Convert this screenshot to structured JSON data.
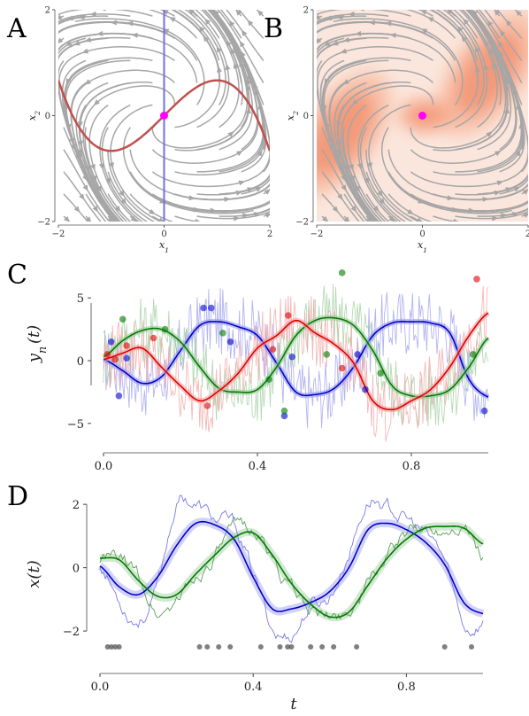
{
  "panels": {
    "a": "A",
    "b": "B",
    "c": "C",
    "d": "D"
  },
  "colors": {
    "stream": "#a6a6a6",
    "nullcline_vertical": "#7070ee",
    "nullcline_cubic": "#c0504d",
    "fixed_point": "#ff00ff",
    "density": "#f4956e",
    "series_blue": "#0000cc",
    "series_green": "#007a00",
    "series_red": "#dd0000",
    "observation_dots": "#555555"
  },
  "chart_data": [
    {
      "panel": "A",
      "type": "streamplot",
      "xlabel": "x_1",
      "ylabel": "x_2",
      "xlim": [
        -2,
        2
      ],
      "ylim": [
        -2,
        2
      ],
      "xticks": [
        "−2",
        "0",
        "2"
      ],
      "yticks": [
        "−2",
        "0",
        "2"
      ],
      "fixed_point": [
        0,
        0
      ],
      "nullclines": [
        {
          "kind": "vertical",
          "x": 0
        },
        {
          "kind": "cubic",
          "x": [
            -2,
            -1.5,
            -1,
            -0.5,
            0,
            0.5,
            1,
            1.5,
            2
          ],
          "y": [
            0.67,
            -0.19,
            -0.67,
            -0.46,
            0,
            0.46,
            0.67,
            0.19,
            -0.67
          ]
        }
      ]
    },
    {
      "panel": "B",
      "type": "streamplot",
      "xlabel": "x_1",
      "ylabel": "x_2",
      "xlim": [
        -2,
        2
      ],
      "ylim": [
        -2,
        2
      ],
      "xticks": [
        "−2",
        "0",
        "2"
      ],
      "yticks": [
        "−2",
        "0",
        "2"
      ],
      "fixed_point": [
        0,
        0
      ],
      "density_blobs": [
        {
          "center": [
            -1.55,
            -0.35
          ],
          "size": [
            0.45,
            0.9
          ],
          "angle": 35
        },
        {
          "center": [
            1.25,
            0.8
          ],
          "size": [
            0.45,
            0.9
          ],
          "angle": 35
        },
        {
          "center": [
            0.05,
            0.0
          ],
          "size": [
            0.35,
            0.22
          ],
          "angle": 0
        }
      ]
    },
    {
      "panel": "C",
      "type": "line",
      "ylabel": "y_n(t)",
      "xlim": [
        0,
        1
      ],
      "ylim": [
        -6,
        6
      ],
      "xticks": [
        "0.0",
        "0.4",
        "0.8"
      ],
      "yticks": [
        "5",
        "0",
        "−5"
      ],
      "x": [
        0,
        0.05,
        0.1,
        0.15,
        0.2,
        0.25,
        0.3,
        0.35,
        0.4,
        0.45,
        0.5,
        0.55,
        0.6,
        0.65,
        0.7,
        0.75,
        0.8,
        0.85,
        0.9,
        0.95,
        1.0
      ],
      "series": [
        {
          "color": "blue",
          "values": [
            0.1,
            -0.8,
            -1.8,
            -1.3,
            0.8,
            2.8,
            3.1,
            2.7,
            2.0,
            -0.2,
            -2.5,
            -2.7,
            -2.2,
            -0.5,
            2.0,
            3.0,
            3.1,
            3.0,
            2.2,
            -1.5,
            -2.9
          ]
        },
        {
          "color": "green",
          "values": [
            0.3,
            1.6,
            2.4,
            2.5,
            1.5,
            -0.5,
            -2.2,
            -2.5,
            -2.3,
            -0.5,
            2.0,
            3.2,
            3.4,
            2.8,
            0.8,
            -2.0,
            -2.8,
            -2.8,
            -2.3,
            -0.5,
            1.8
          ]
        },
        {
          "color": "red",
          "values": [
            0.1,
            0.6,
            1.0,
            -0.5,
            -2.0,
            -3.2,
            -2.4,
            -1.0,
            1.0,
            2.0,
            3.2,
            2.2,
            1.3,
            -0.2,
            -3.2,
            -3.9,
            -3.2,
            -2.3,
            -0.5,
            2.0,
            3.8
          ]
        }
      ],
      "observations": [
        {
          "color": "blue",
          "points": [
            [
              0.02,
              1.5
            ],
            [
              0.04,
              -2.8
            ],
            [
              0.06,
              0.2
            ],
            [
              0.26,
              4.2
            ],
            [
              0.28,
              4.2
            ],
            [
              0.33,
              1.5
            ],
            [
              0.47,
              -4.4
            ],
            [
              0.49,
              0.3
            ],
            [
              0.66,
              0.5
            ],
            [
              0.68,
              -2.3
            ],
            [
              0.99,
              -4.0
            ]
          ]
        },
        {
          "color": "green",
          "points": [
            [
              0.05,
              3.3
            ],
            [
              0.16,
              2.5
            ],
            [
              0.31,
              2.2
            ],
            [
              0.43,
              -1.5
            ],
            [
              0.47,
              -4.0
            ],
            [
              0.58,
              0.5
            ],
            [
              0.62,
              7.0
            ],
            [
              0.72,
              -1.0
            ],
            [
              0.96,
              0.5
            ]
          ]
        },
        {
          "color": "red",
          "points": [
            [
              0.01,
              0.5
            ],
            [
              0.03,
              0.1
            ],
            [
              0.06,
              1.2
            ],
            [
              0.13,
              1.8
            ],
            [
              0.27,
              -3.6
            ],
            [
              0.44,
              0.9
            ],
            [
              0.48,
              3.6
            ],
            [
              0.62,
              -0.6
            ],
            [
              0.97,
              6.5
            ]
          ]
        }
      ]
    },
    {
      "panel": "D",
      "type": "line",
      "xlabel": "t",
      "ylabel": "x(t)",
      "xlim": [
        0,
        1
      ],
      "ylim": [
        -2.5,
        2.2
      ],
      "xticks": [
        "0.0",
        "0.4",
        "0.8"
      ],
      "yticks": [
        "2",
        "0",
        "−2"
      ],
      "x": [
        0,
        0.05,
        0.1,
        0.15,
        0.2,
        0.25,
        0.3,
        0.35,
        0.4,
        0.45,
        0.5,
        0.55,
        0.6,
        0.65,
        0.7,
        0.75,
        0.8,
        0.85,
        0.9,
        0.95,
        1.0
      ],
      "series": [
        {
          "color": "blue",
          "kind": "estimate",
          "values": [
            0.05,
            -0.6,
            -0.85,
            -0.3,
            0.7,
            1.4,
            1.35,
            0.9,
            -0.3,
            -1.3,
            -1.3,
            -1.1,
            -0.75,
            0.0,
            1.2,
            1.4,
            1.2,
            0.8,
            0.1,
            -1.1,
            -1.45
          ]
        },
        {
          "color": "green",
          "kind": "estimate",
          "values": [
            0.3,
            0.25,
            -0.4,
            -0.9,
            -0.85,
            -0.2,
            0.4,
            0.95,
            1.1,
            0.4,
            -0.5,
            -1.15,
            -1.55,
            -1.4,
            -0.55,
            0.3,
            0.9,
            1.25,
            1.3,
            1.25,
            0.75
          ]
        },
        {
          "color": "blue",
          "kind": "truth",
          "values": [
            0.1,
            -1.0,
            -1.6,
            -0.6,
            2.0,
            2.0,
            1.5,
            1.3,
            -0.2,
            -1.9,
            -2.1,
            -1.2,
            -0.9,
            0.5,
            2.1,
            1.9,
            1.5,
            1.0,
            0.2,
            -1.8,
            -1.7
          ]
        },
        {
          "color": "green",
          "kind": "truth",
          "values": [
            0.3,
            0.2,
            -0.3,
            -1.4,
            -1.0,
            -0.3,
            0.4,
            1.1,
            1.25,
            0.3,
            -0.7,
            -1.3,
            -1.6,
            -1.3,
            -0.5,
            0.4,
            1.0,
            1.2,
            1.3,
            1.45,
            0.4
          ]
        }
      ],
      "observation_times": [
        0.02,
        0.03,
        0.04,
        0.05,
        0.26,
        0.28,
        0.31,
        0.34,
        0.42,
        0.47,
        0.49,
        0.5,
        0.55,
        0.58,
        0.61,
        0.67,
        0.9,
        0.97
      ],
      "observation_level": -2.5
    }
  ]
}
